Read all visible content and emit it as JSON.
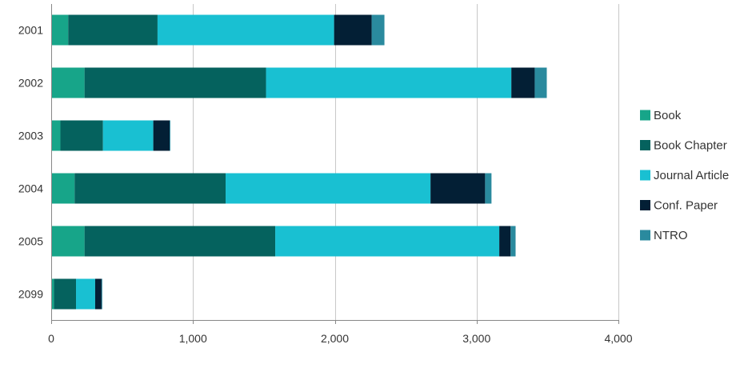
{
  "chart_data": {
    "type": "bar",
    "orientation": "horizontal",
    "stacked": true,
    "title": "",
    "xlabel": "",
    "ylabel": "",
    "categories": [
      "2001",
      "2002",
      "2003",
      "2004",
      "2005",
      "2099"
    ],
    "xlim": [
      0,
      4000
    ],
    "xticks": [
      0,
      1000,
      2000,
      3000,
      4000
    ],
    "xtick_labels": [
      "0",
      "1,000",
      "2,000",
      "3,000",
      "4,000"
    ],
    "grid": "vertical",
    "legend_position": "right",
    "series": [
      {
        "name": "Book",
        "color": "#17a589",
        "values": [
          120,
          235,
          65,
          165,
          235,
          20
        ]
      },
      {
        "name": "Book Chapter",
        "color": "#05625e",
        "values": [
          630,
          1280,
          300,
          1065,
          1345,
          155
        ]
      },
      {
        "name": "Journal Article",
        "color": "#19c0d2",
        "values": [
          1245,
          1730,
          355,
          1445,
          1580,
          135
        ]
      },
      {
        "name": "Conf. Paper",
        "color": "#031f35",
        "values": [
          265,
          165,
          115,
          385,
          80,
          45
        ]
      },
      {
        "name": "NTRO",
        "color": "#2a8a9e",
        "values": [
          90,
          85,
          5,
          45,
          35,
          5
        ]
      }
    ]
  }
}
